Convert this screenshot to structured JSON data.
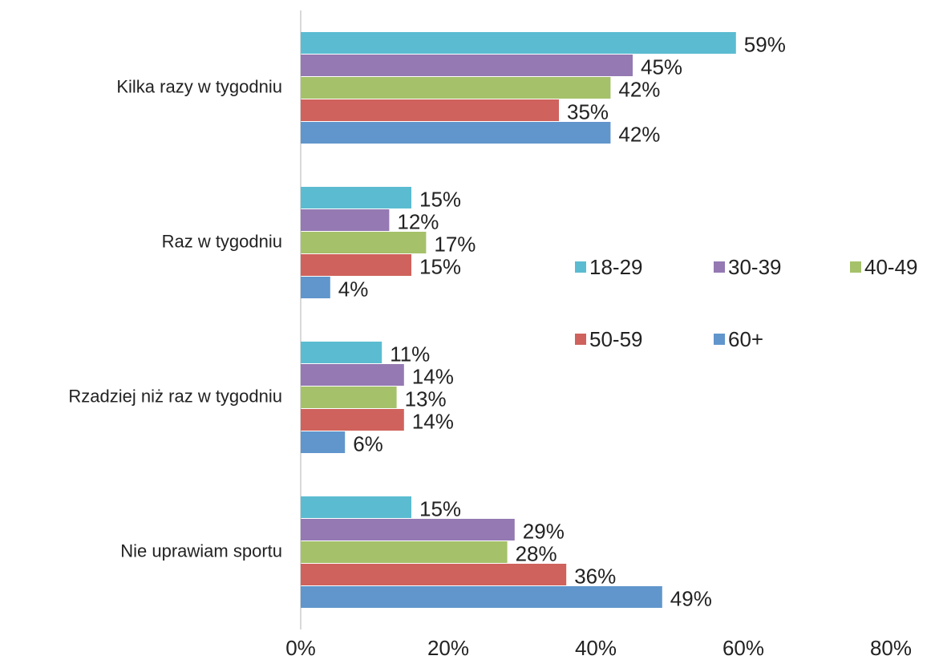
{
  "chart_data": {
    "type": "bar",
    "orientation": "horizontal",
    "categories": [
      "Kilka razy w tygodniu",
      "Raz w tygodniu",
      "Rzadziej niż raz w tygodniu",
      "Nie uprawiam sportu"
    ],
    "series": [
      {
        "name": "18-29",
        "color": "#5bbcd1",
        "values": [
          59,
          15,
          11,
          15
        ],
        "value_labels": [
          "59%",
          "15%",
          "11%",
          "15%"
        ]
      },
      {
        "name": "30-39",
        "color": "#9479b2",
        "values": [
          45,
          12,
          14,
          29
        ],
        "value_labels": [
          "45%",
          "12%",
          "14%",
          "29%"
        ]
      },
      {
        "name": "40-49",
        "color": "#a5c16a",
        "values": [
          42,
          17,
          13,
          28
        ],
        "value_labels": [
          "42%",
          "17%",
          "13%",
          "28%"
        ]
      },
      {
        "name": "50-59",
        "color": "#cf625c",
        "values": [
          35,
          15,
          14,
          36
        ],
        "value_labels": [
          "35%",
          "15%",
          "14%",
          "36%"
        ]
      },
      {
        "name": "60+",
        "color": "#6096cc",
        "values": [
          42,
          4,
          6,
          49
        ],
        "value_labels": [
          "42%",
          "4%",
          "6%",
          "49%"
        ]
      }
    ],
    "xlim": [
      0,
      80
    ],
    "xticks": [
      {
        "value": 0,
        "label": "0%"
      },
      {
        "value": 20,
        "label": "20%"
      },
      {
        "value": 40,
        "label": "40%"
      },
      {
        "value": 60,
        "label": "60%"
      },
      {
        "value": 80,
        "label": "80%"
      }
    ],
    "grid": false
  }
}
